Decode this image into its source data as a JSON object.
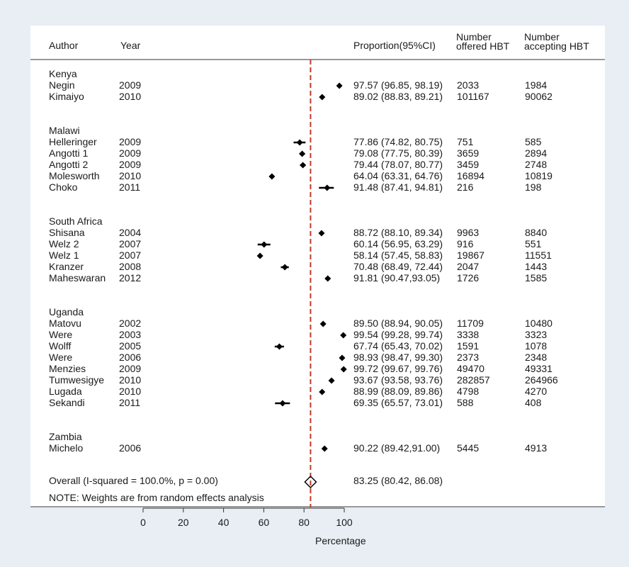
{
  "headers": {
    "author": "Author",
    "year": "Year",
    "proportion": "Proportion(95%CI)",
    "offered_l1": "Number",
    "offered_l2": "offered HBT",
    "accepting_l1": "Number",
    "accepting_l2": "accepting HBT"
  },
  "chart_data": {
    "type": "forest",
    "xlabel": "Percentage",
    "xlim": [
      0,
      100
    ],
    "xticks": [
      0,
      20,
      40,
      60,
      80,
      100
    ],
    "reference_line": 83.25,
    "colors": {
      "reference_line": "#c0392b",
      "marker": "#000000",
      "background": "#e8eef4",
      "panel": "#ffffff"
    },
    "groups": [
      {
        "name": "Kenya",
        "studies": [
          {
            "author": "Negin",
            "year": "2009",
            "estimate": 97.57,
            "lower": 96.85,
            "upper": 98.19,
            "ci_text": "97.57 (96.85, 98.19)",
            "offered": "2033",
            "accepting": "1984"
          },
          {
            "author": "Kimaiyo",
            "year": "2010",
            "estimate": 89.02,
            "lower": 88.83,
            "upper": 89.21,
            "ci_text": "89.02 (88.83, 89.21)",
            "offered": "101167",
            "accepting": "90062"
          }
        ]
      },
      {
        "name": "Malawi",
        "studies": [
          {
            "author": "Helleringer",
            "year": "2009",
            "estimate": 77.86,
            "lower": 74.82,
            "upper": 80.75,
            "ci_text": "77.86 (74.82, 80.75)",
            "offered": "751",
            "accepting": "585"
          },
          {
            "author": "Angotti 1",
            "year": "2009",
            "estimate": 79.08,
            "lower": 77.75,
            "upper": 80.39,
            "ci_text": "79.08 (77.75, 80.39)",
            "offered": "3659",
            "accepting": "2894"
          },
          {
            "author": "Angotti 2",
            "year": "2009",
            "estimate": 79.44,
            "lower": 78.07,
            "upper": 80.77,
            "ci_text": "79.44 (78.07, 80.77)",
            "offered": "3459",
            "accepting": "2748"
          },
          {
            "author": "Molesworth",
            "year": "2010",
            "estimate": 64.04,
            "lower": 63.31,
            "upper": 64.76,
            "ci_text": "64.04 (63.31, 64.76)",
            "offered": "16894",
            "accepting": "10819"
          },
          {
            "author": "Choko",
            "year": "2011",
            "estimate": 91.48,
            "lower": 87.41,
            "upper": 94.81,
            "ci_text": "91.48 (87.41, 94.81)",
            "offered": "216",
            "accepting": "198"
          }
        ]
      },
      {
        "name": "South Africa",
        "studies": [
          {
            "author": "Shisana",
            "year": "2004",
            "estimate": 88.72,
            "lower": 88.1,
            "upper": 89.34,
            "ci_text": "88.72 (88.10, 89.34)",
            "offered": "9963",
            "accepting": "8840"
          },
          {
            "author": "Welz 2",
            "year": "2007",
            "estimate": 60.14,
            "lower": 56.95,
            "upper": 63.29,
            "ci_text": "60.14 (56.95, 63.29)",
            "offered": "916",
            "accepting": "551"
          },
          {
            "author": "Welz 1",
            "year": "2007",
            "estimate": 58.14,
            "lower": 57.45,
            "upper": 58.83,
            "ci_text": "58.14 (57.45, 58.83)",
            "offered": "19867",
            "accepting": "11551"
          },
          {
            "author": "Kranzer",
            "year": "2008",
            "estimate": 70.48,
            "lower": 68.49,
            "upper": 72.44,
            "ci_text": "70.48 (68.49, 72.44)",
            "offered": "2047",
            "accepting": "1443"
          },
          {
            "author": "Maheswaran",
            "year": "2012",
            "estimate": 91.81,
            "lower": 90.47,
            "upper": 93.05,
            "ci_text": "91.81 (90.47,93.05)",
            "offered": "1726",
            "accepting": "1585"
          }
        ]
      },
      {
        "name": "Uganda",
        "studies": [
          {
            "author": "Matovu",
            "year": "2002",
            "estimate": 89.5,
            "lower": 88.94,
            "upper": 90.05,
            "ci_text": "89.50 (88.94, 90.05)",
            "offered": "11709",
            "accepting": "10480"
          },
          {
            "author": "Were",
            "year": "2003",
            "estimate": 99.54,
            "lower": 99.28,
            "upper": 99.74,
            "ci_text": "99.54 (99.28, 99.74)",
            "offered": "3338",
            "accepting": "3323"
          },
          {
            "author": "Wolff",
            "year": "2005",
            "estimate": 67.74,
            "lower": 65.43,
            "upper": 70.02,
            "ci_text": "67.74 (65.43, 70.02)",
            "offered": "1591",
            "accepting": "1078"
          },
          {
            "author": "Were",
            "year": "2006",
            "estimate": 98.93,
            "lower": 98.47,
            "upper": 99.3,
            "ci_text": "98.93 (98.47, 99.30)",
            "offered": "2373",
            "accepting": "2348"
          },
          {
            "author": "Menzies",
            "year": "2009",
            "estimate": 99.72,
            "lower": 99.67,
            "upper": 99.76,
            "ci_text": "99.72 (99.67, 99.76)",
            "offered": "49470",
            "accepting": "49331"
          },
          {
            "author": "Tumwesigye",
            "year": "2010",
            "estimate": 93.67,
            "lower": 93.58,
            "upper": 93.76,
            "ci_text": "93.67 (93.58, 93.76)",
            "offered": "282857",
            "accepting": "264966"
          },
          {
            "author": "Lugada",
            "year": "2010",
            "estimate": 88.99,
            "lower": 88.09,
            "upper": 89.86,
            "ci_text": "88.99 (88.09, 89.86)",
            "offered": "4798",
            "accepting": "4270"
          },
          {
            "author": "Sekandi",
            "year": "2011",
            "estimate": 69.35,
            "lower": 65.57,
            "upper": 73.01,
            "ci_text": "69.35 (65.57, 73.01)",
            "offered": "588",
            "accepting": "408"
          }
        ]
      },
      {
        "name": "Zambia",
        "studies": [
          {
            "author": "Michelo",
            "year": "2006",
            "estimate": 90.22,
            "lower": 89.42,
            "upper": 91.0,
            "ci_text": "90.22 (89.42,91.00)",
            "offered": "5445",
            "accepting": "4913"
          }
        ]
      }
    ],
    "overall": {
      "label": "Overall  (I-squared = 100.0%, p = 0.00)",
      "estimate": 83.25,
      "lower": 80.42,
      "upper": 86.08,
      "ci_text": "83.25 (80.42, 86.08)"
    },
    "note": "NOTE: Weights are from random effects analysis"
  }
}
